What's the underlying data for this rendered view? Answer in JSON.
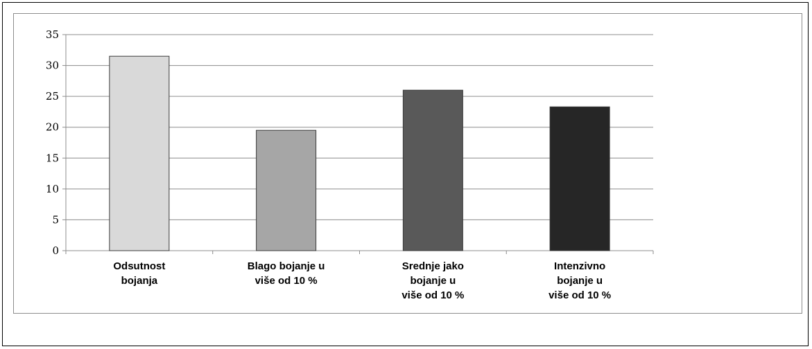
{
  "chart_data": {
    "type": "bar",
    "categories": [
      [
        "Odsutnost",
        "bojanja"
      ],
      [
        "Blago bojanje u",
        "više od 10 %"
      ],
      [
        "Srednje jako",
        "bojanje u",
        "više od 10 %"
      ],
      [
        "Intenzivno",
        "bojanje u",
        "više od 10 %"
      ]
    ],
    "values": [
      31.5,
      19.5,
      26,
      23.3
    ],
    "colors": [
      "#d9d9d9",
      "#a6a6a6",
      "#595959",
      "#262626"
    ],
    "y_ticks": [
      "0",
      "5",
      "10",
      "15",
      "20",
      "25",
      "30",
      "35"
    ],
    "ylim": [
      0,
      35
    ],
    "grid": true,
    "legend": "none",
    "title": "",
    "xlabel": "",
    "ylabel": ""
  }
}
